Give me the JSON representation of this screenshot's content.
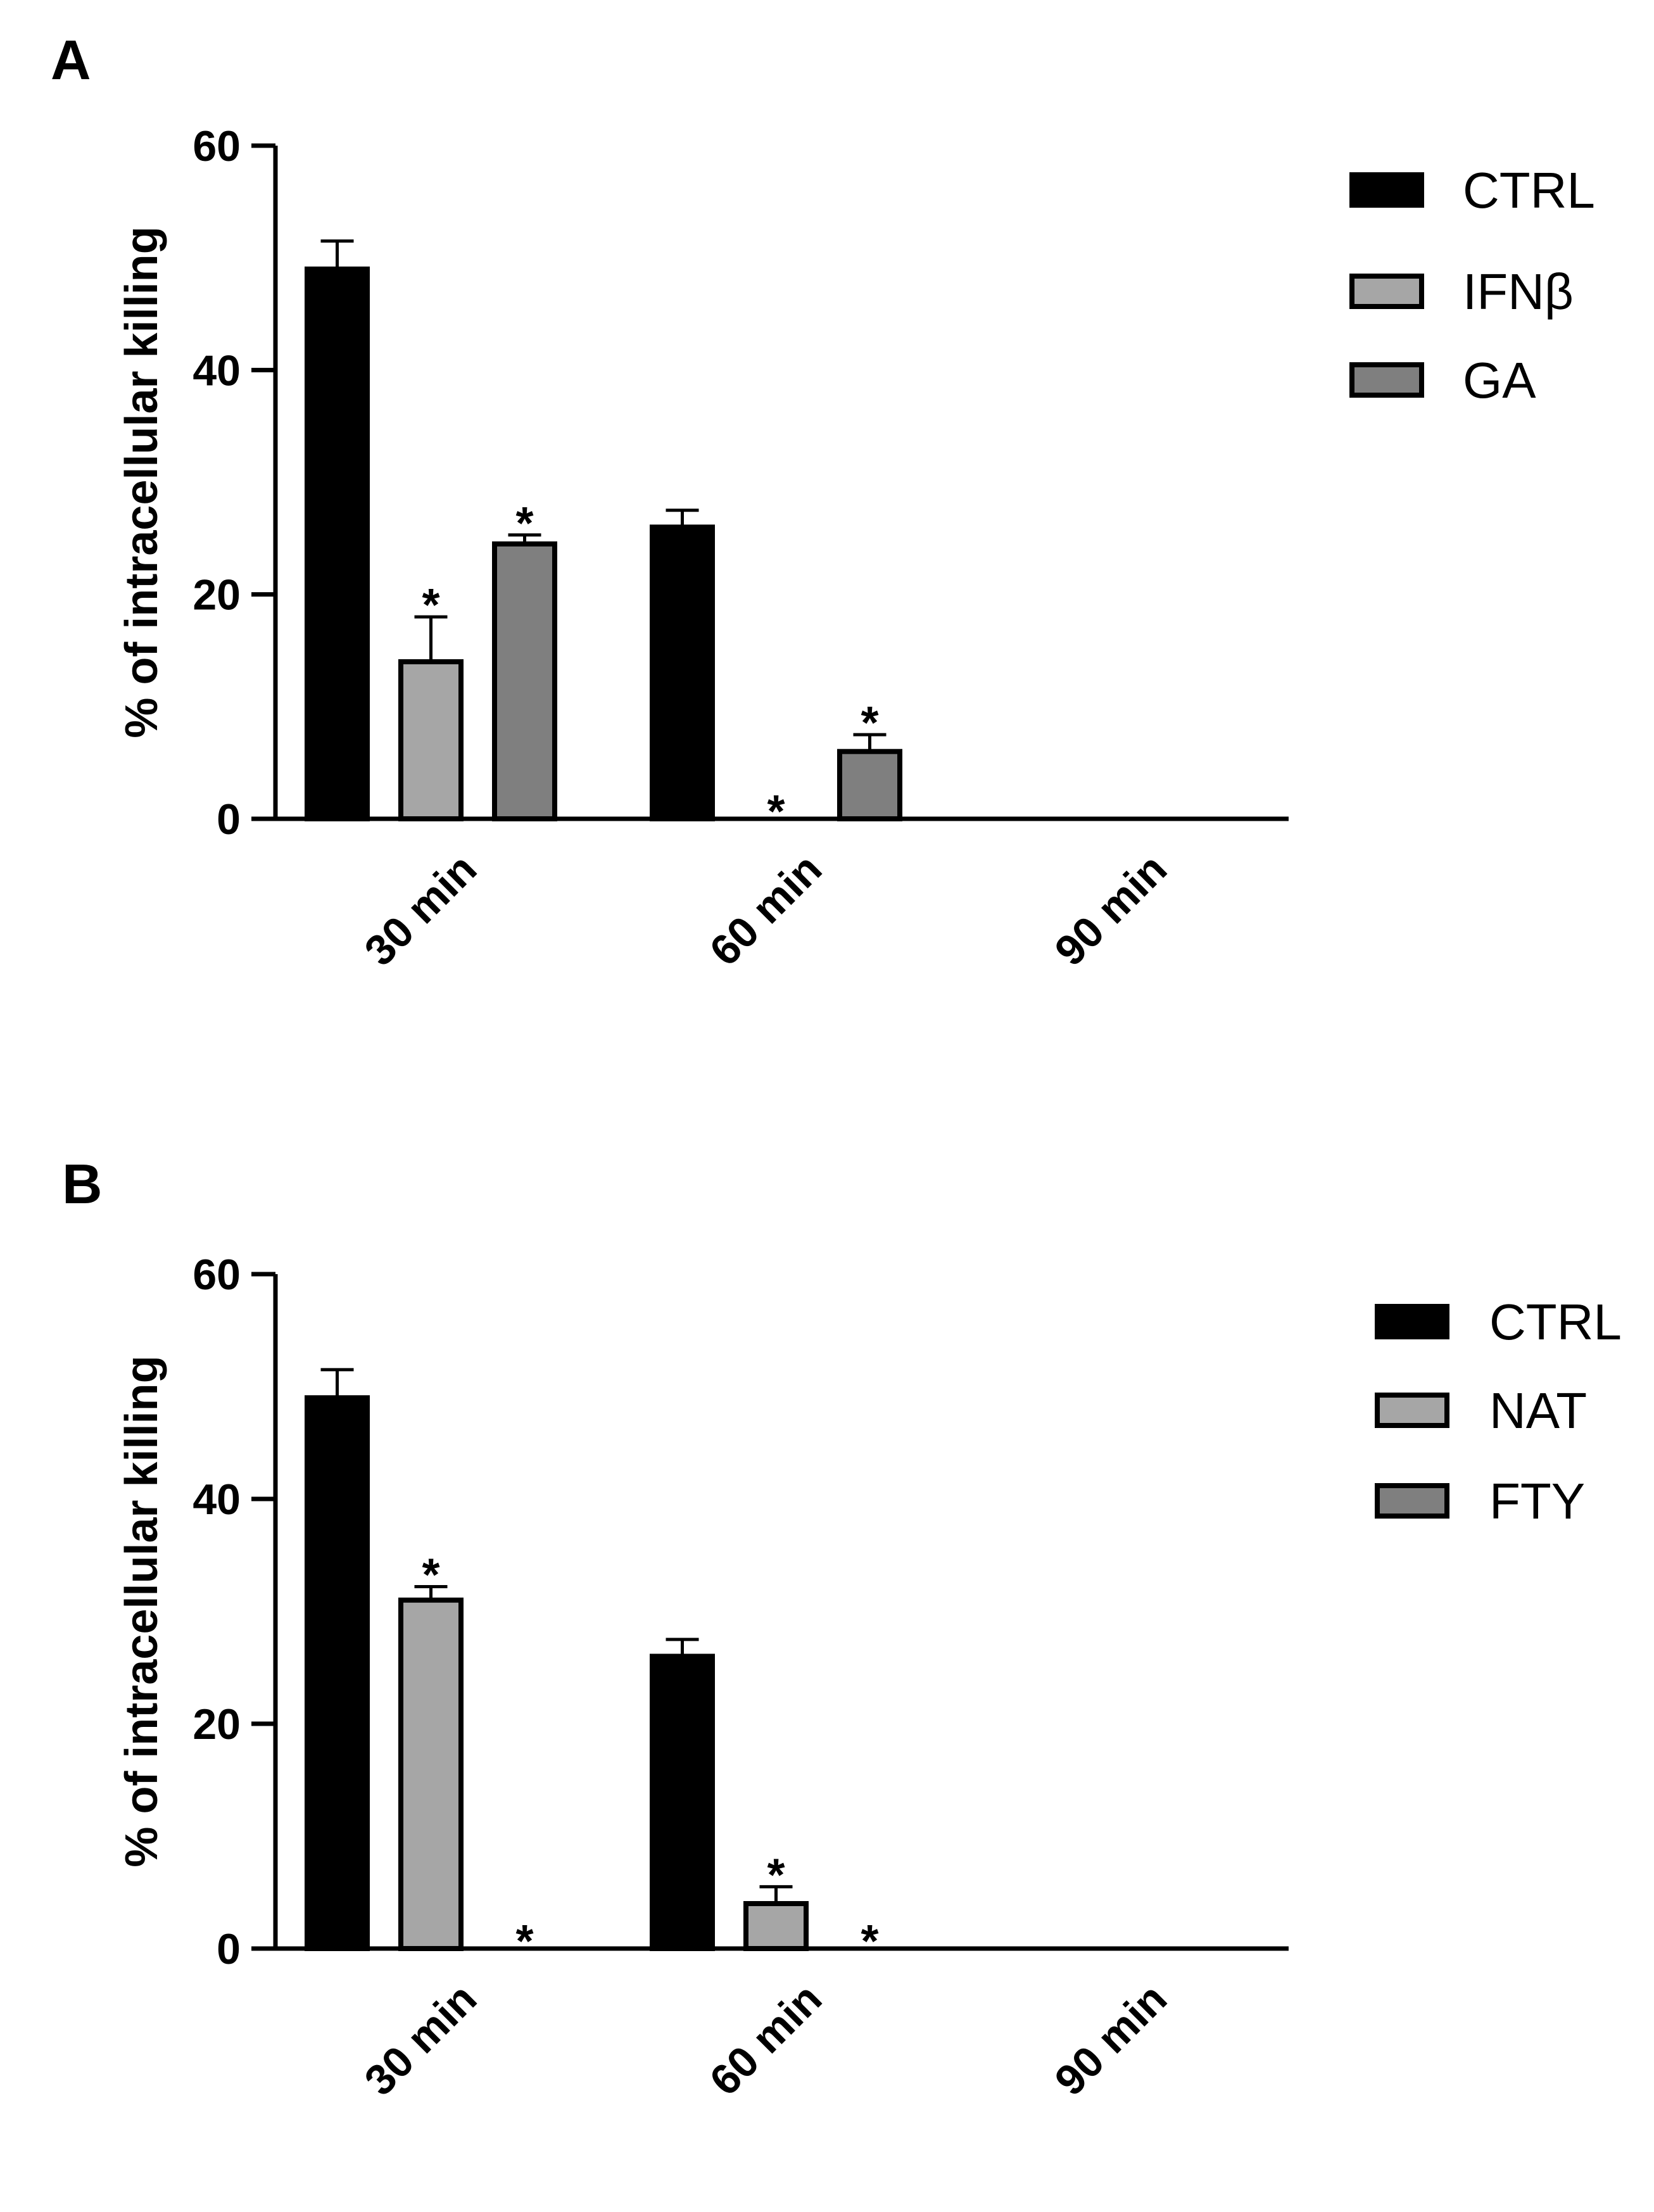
{
  "chart_data": [
    {
      "type": "bar",
      "panel": "A",
      "title": "",
      "xlabel": "",
      "ylabel": "% of intracellular killing",
      "ylim": [
        0,
        60
      ],
      "yticks": [
        0,
        20,
        40,
        60
      ],
      "categories": [
        "30 min",
        "60 min",
        "90 min"
      ],
      "series": [
        {
          "name": "CTRL",
          "color": "#000000",
          "values": [
            49,
            26,
            0
          ],
          "errors": [
            2.5,
            1.5,
            0
          ],
          "sig": [
            "",
            "",
            ""
          ]
        },
        {
          "name": "IFNβ",
          "color": "#a6a6a6",
          "values": [
            14,
            0,
            0
          ],
          "errors": [
            4,
            0,
            0
          ],
          "sig": [
            "*",
            "*",
            ""
          ]
        },
        {
          "name": "GA",
          "color": "#7f7f7f",
          "values": [
            24.5,
            6,
            0
          ],
          "errors": [
            0.8,
            1.5,
            0
          ],
          "sig": [
            "*",
            "*",
            ""
          ]
        }
      ],
      "legend": "top-right"
    },
    {
      "type": "bar",
      "panel": "B",
      "title": "",
      "xlabel": "",
      "ylabel": "% of intracellular killing",
      "ylim": [
        0,
        60
      ],
      "yticks": [
        0,
        20,
        40,
        60
      ],
      "categories": [
        "30 min",
        "60 min",
        "90 min"
      ],
      "series": [
        {
          "name": "CTRL",
          "color": "#000000",
          "values": [
            49,
            26,
            0
          ],
          "errors": [
            2.5,
            1.5,
            0
          ],
          "sig": [
            "",
            "",
            ""
          ]
        },
        {
          "name": "NAT",
          "color": "#a6a6a6",
          "values": [
            31,
            4,
            0
          ],
          "errors": [
            1.2,
            1.5,
            0
          ],
          "sig": [
            "*",
            "*",
            ""
          ]
        },
        {
          "name": "FTY",
          "color": "#7f7f7f",
          "values": [
            0,
            0,
            0
          ],
          "errors": [
            0,
            0,
            0
          ],
          "sig": [
            "*",
            "*",
            ""
          ]
        }
      ],
      "legend": "top-right"
    }
  ]
}
